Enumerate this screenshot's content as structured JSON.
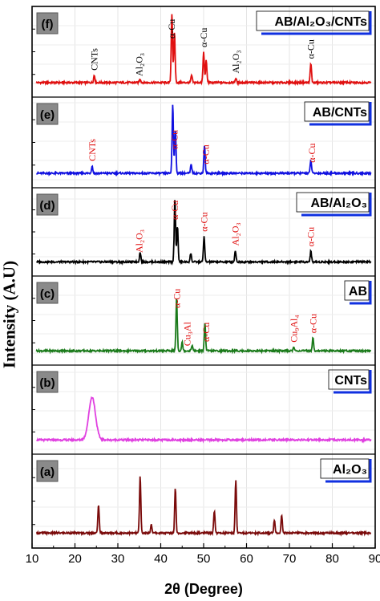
{
  "chart_data": {
    "type": "line",
    "xlabel": "2θ (Degree)",
    "ylabel": "Intensity (A.U)",
    "xlim": [
      10,
      90
    ],
    "xticks": [
      10,
      20,
      30,
      40,
      50,
      60,
      70,
      80,
      90
    ],
    "panels": [
      {
        "tag": "(f)",
        "legend": "AB/Al₂O₃/CNTs",
        "color": "#e01010",
        "label_color": "#000000",
        "peaks": [
          [
            24.5,
            0.1
          ],
          [
            35.2,
            0.05
          ],
          [
            42.6,
            0.95
          ],
          [
            43.2,
            0.7
          ],
          [
            47.2,
            0.1
          ],
          [
            50.0,
            0.42
          ],
          [
            50.6,
            0.3
          ],
          [
            57.5,
            0.06
          ],
          [
            75.0,
            0.26
          ]
        ],
        "labels": [
          {
            "text": "CNTs",
            "x": 24.5
          },
          {
            "text": "Al₂O₃",
            "x": 35.0
          },
          {
            "text": "α-Cu",
            "x": 42.5
          },
          {
            "text": "α-Cu",
            "x": 50.0
          },
          {
            "text": "Al₂O₃",
            "x": 57.5
          },
          {
            "text": "α-Cu",
            "x": 75.0
          }
        ]
      },
      {
        "tag": "(e)",
        "legend": "AB/CNTs",
        "color": "#1010e0",
        "label_color": "#e01010",
        "peaks": [
          [
            24.0,
            0.1
          ],
          [
            42.8,
            0.95
          ],
          [
            43.4,
            0.6
          ],
          [
            47.1,
            0.12
          ],
          [
            50.2,
            0.38
          ],
          [
            75.0,
            0.18
          ]
        ],
        "labels": [
          {
            "text": "CNTs",
            "x": 24.0
          },
          {
            "text": "α-Cu",
            "x": 43.2
          },
          {
            "text": "α-Cu",
            "x": 50.5
          },
          {
            "text": "α-Cu",
            "x": 75.2
          }
        ]
      },
      {
        "tag": "(d)",
        "legend": "AB/Al₂O₃",
        "color": "#000000",
        "label_color": "#e01010",
        "peaks": [
          [
            35.2,
            0.14
          ],
          [
            43.3,
            0.9
          ],
          [
            43.9,
            0.5
          ],
          [
            47.0,
            0.12
          ],
          [
            50.1,
            0.36
          ],
          [
            57.4,
            0.16
          ],
          [
            75.0,
            0.15
          ]
        ],
        "labels": [
          {
            "text": "Al₂O₃",
            "x": 35.0
          },
          {
            "text": "α-Cu",
            "x": 43.3
          },
          {
            "text": "α-Cu",
            "x": 50.1
          },
          {
            "text": "Al₂O₃",
            "x": 57.4
          },
          {
            "text": "α-Cu",
            "x": 75.0
          }
        ]
      },
      {
        "tag": "(c)",
        "legend": "AB",
        "color": "#1a7a1a",
        "label_color": "#e01010",
        "peaks": [
          [
            43.7,
            0.75
          ],
          [
            45.0,
            0.12
          ],
          [
            47.3,
            0.08
          ],
          [
            50.3,
            0.38
          ],
          [
            71.0,
            0.05
          ],
          [
            75.5,
            0.18
          ]
        ],
        "labels": [
          {
            "text": "α-Cu",
            "x": 43.7
          },
          {
            "text": "Cu₃Al",
            "x": 46.2
          },
          {
            "text": "α-Cu",
            "x": 50.6
          },
          {
            "text": "Cu₉Al₄",
            "x": 71.0
          },
          {
            "text": "α-Cu",
            "x": 75.5
          }
        ]
      },
      {
        "tag": "(b)",
        "legend": "CNTs",
        "color": "#e040e0",
        "label_color": "#000000",
        "peaks": [
          [
            24.0,
            0.6
          ]
        ],
        "labels": []
      },
      {
        "tag": "(a)",
        "legend": "Al₂O₃",
        "color": "#7a0a0a",
        "label_color": "#000000",
        "peaks": [
          [
            25.5,
            0.38
          ],
          [
            35.2,
            0.75
          ],
          [
            37.8,
            0.12
          ],
          [
            43.4,
            0.6
          ],
          [
            52.5,
            0.3
          ],
          [
            57.5,
            0.7
          ],
          [
            66.5,
            0.18
          ],
          [
            68.2,
            0.24
          ]
        ],
        "labels": []
      }
    ]
  }
}
